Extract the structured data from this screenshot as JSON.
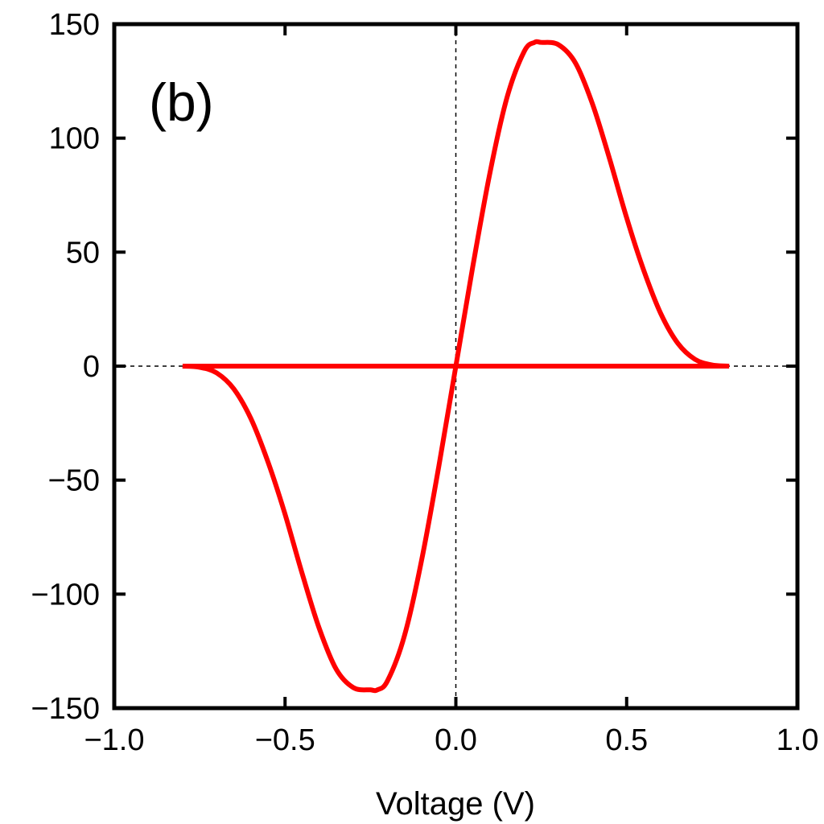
{
  "chart_data": {
    "type": "line",
    "panel_label": "(b)",
    "xlabel": "Voltage (V)",
    "ylabel": "",
    "xlim": [
      -1.0,
      1.0
    ],
    "ylim": [
      -150,
      150
    ],
    "x_ticks": [
      -1.0,
      -0.5,
      0.0,
      0.5,
      1.0
    ],
    "x_tick_labels": [
      "−1.0",
      "−0.5",
      "0.0",
      "0.5",
      "1.0"
    ],
    "y_ticks": [
      -150,
      -100,
      -50,
      0,
      50,
      100,
      150
    ],
    "y_tick_labels": [
      "−150",
      "−100",
      "−50",
      "0",
      "50",
      "100",
      "150"
    ],
    "reference_lines": {
      "x": 0,
      "y": 0,
      "style": "dashed"
    },
    "grid": false,
    "line_color": "#ff0000",
    "series": [
      {
        "x": [
          -0.8,
          -0.75,
          -0.7,
          -0.65,
          -0.6,
          -0.55,
          -0.5,
          -0.45,
          -0.4,
          -0.35,
          -0.3,
          -0.25,
          -0.23,
          -0.2,
          -0.15,
          -0.1,
          -0.05,
          0.0,
          0.05,
          0.1,
          0.15,
          0.2,
          0.23,
          0.25,
          0.3,
          0.35,
          0.4,
          0.45,
          0.5,
          0.55,
          0.6,
          0.65,
          0.7,
          0.75,
          0.8
        ],
        "y": [
          0,
          -0.5,
          -3,
          -10,
          -23,
          -42,
          -65,
          -91,
          -115,
          -133,
          -141,
          -142,
          -142,
          -138,
          -118,
          -85,
          -44,
          0,
          44,
          85,
          118,
          138,
          142,
          142,
          141,
          133,
          115,
          91,
          65,
          42,
          23,
          10,
          3,
          0.5,
          0
        ]
      },
      {
        "x": [
          -0.8,
          0.8
        ],
        "y": [
          0,
          0
        ]
      }
    ]
  }
}
